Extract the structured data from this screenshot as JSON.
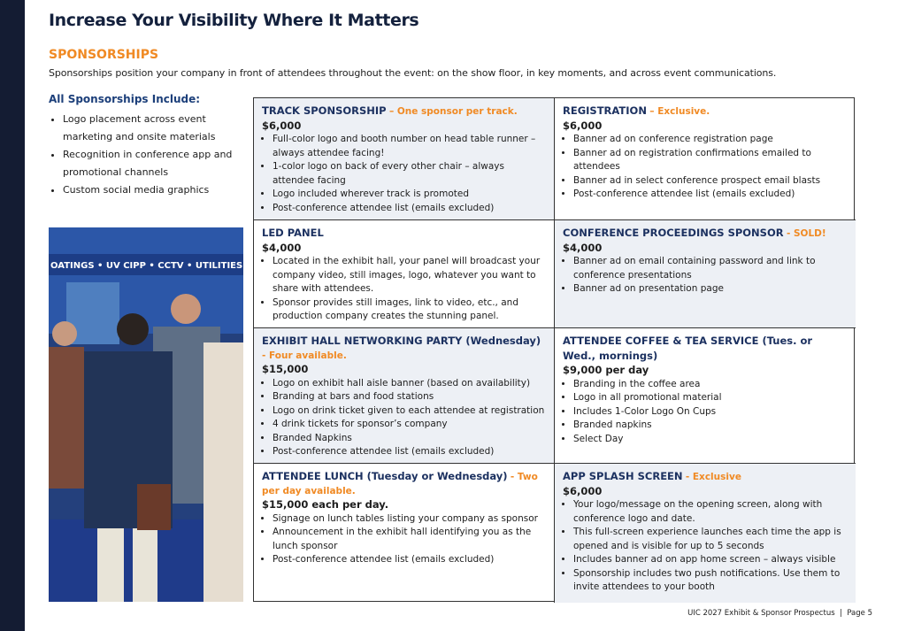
{
  "header": {
    "title": "Increase Your Visibility Where It Matters"
  },
  "section": {
    "heading": "SPONSORSHIPS",
    "intro": "Sponsorships position your company in front of attendees throughout the event: on the show floor, in key moments, and across event communications."
  },
  "includes": {
    "heading": "All Sponsorships Include:",
    "items": [
      "Logo placement across event marketing and onsite materials",
      "Recognition in conference app and promotional channels",
      "Custom social media graphics"
    ]
  },
  "photo": {
    "banner": "OATINGS • UV CIPP • CCTV • UTILITIES"
  },
  "table": {
    "cells": [
      {
        "title": "TRACK SPONSORSHIP",
        "note": "– One sponsor per track.",
        "price": "$6,000",
        "items": [
          "Full-color logo and booth number on head table runner – always attendee facing!",
          "1-color logo on back of every other chair – always attendee facing",
          "Logo included wherever track is promoted",
          "Post-conference attendee list (emails excluded)"
        ]
      },
      {
        "title": "REGISTRATION",
        "note": "– Exclusive.",
        "price": "$6,000",
        "items": [
          "Banner ad on conference registration page",
          "Banner ad on registration confirmations emailed to attendees",
          "Banner ad in select conference prospect email blasts",
          "Post-conference attendee list (emails excluded)"
        ]
      },
      {
        "title": "LED PANEL",
        "price": "$4,000",
        "items": [
          "Located in the exhibit hall, your panel will broadcast your company video, still images, logo, whatever you want to share with attendees.",
          "Sponsor provides still images, link to video, etc., and production company creates the stunning panel."
        ]
      },
      {
        "title": "CONFERENCE PROCEEDINGS SPONSOR",
        "note": "- SOLD!",
        "price": "$4,000",
        "items": [
          "Banner ad on email containing password and link to conference presentations",
          "Banner ad on presentation page"
        ]
      },
      {
        "title": "EXHIBIT HALL NETWORKING PARTY (Wednesday)",
        "note": "- Four available.",
        "price": "$15,000",
        "items": [
          "Logo on exhibit hall aisle banner (based on availability)",
          "Branding at bars and food stations",
          "Logo on drink ticket given to each attendee at registration",
          "4 drink tickets for sponsor’s company",
          "Branded Napkins",
          "Post-conference attendee list (emails excluded)"
        ]
      },
      {
        "title": "ATTENDEE COFFEE & TEA SERVICE (Tues. or Wed., mornings)",
        "price": "$9,000 per day",
        "items": [
          "Branding in the coffee area",
          "Logo in all promotional material",
          "Includes 1-Color Logo On Cups",
          "Branded napkins",
          "Select Day"
        ]
      },
      {
        "title": "ATTENDEE LUNCH (Tuesday or Wednesday)",
        "note": "- Two per day available.",
        "price": "$15,000 each per day.",
        "items": [
          "Signage on lunch tables listing your company as sponsor",
          "Announcement in the exhibit hall identifying you as the lunch sponsor",
          "Post-conference attendee list (emails excluded)"
        ]
      },
      {
        "title": "APP SPLASH SCREEN",
        "note": "- Exclusive",
        "price": "$6,000",
        "items": [
          "Your logo/message on the opening screen, along with conference logo and date.",
          "This full-screen experience launches each time the app is opened and is visible for up to 5 seconds",
          "Includes banner ad on app home screen – always visible",
          "Sponsorship includes two push notifications. Use them to invite attendees to your booth"
        ]
      }
    ]
  },
  "footer": {
    "publication": "UIC 2027 Exhibit & Sponsor Prospectus",
    "page": "Page 5"
  }
}
